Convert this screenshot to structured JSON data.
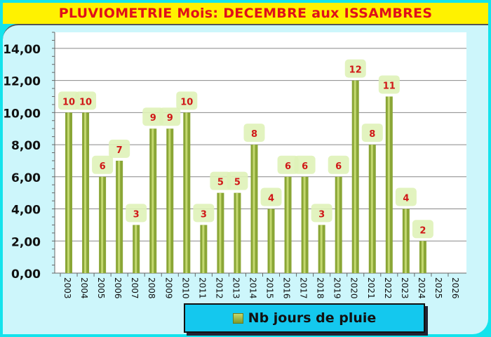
{
  "chart_data": {
    "type": "bar",
    "title": "PLUVIOMETRIE Mois: DECEMBRE aux ISSAMBRES",
    "categories": [
      "2003",
      "2004",
      "2005",
      "2006",
      "2007",
      "2008",
      "2009",
      "2010",
      "2011",
      "2012",
      "2013",
      "2014",
      "2015",
      "2016",
      "2017",
      "2018",
      "2019",
      "2020",
      "2021",
      "2022",
      "2023",
      "2024",
      "2025",
      "2026"
    ],
    "series": [
      {
        "name": "Nb jours de pluie",
        "values": [
          10,
          10,
          6,
          7,
          3,
          9,
          9,
          10,
          3,
          5,
          5,
          8,
          4,
          6,
          6,
          3,
          6,
          12,
          8,
          11,
          4,
          2,
          null,
          null
        ]
      }
    ],
    "yticks": [
      "0,00",
      "2,00",
      "4,00",
      "6,00",
      "8,00",
      "10,00",
      "12,00",
      "14,00"
    ],
    "ylim": [
      0,
      15
    ],
    "grid": true,
    "legend_position": "bottom",
    "colors": {
      "bar": "#8aa636",
      "label": "#d01818",
      "label_bg": "#dff2b8"
    }
  }
}
